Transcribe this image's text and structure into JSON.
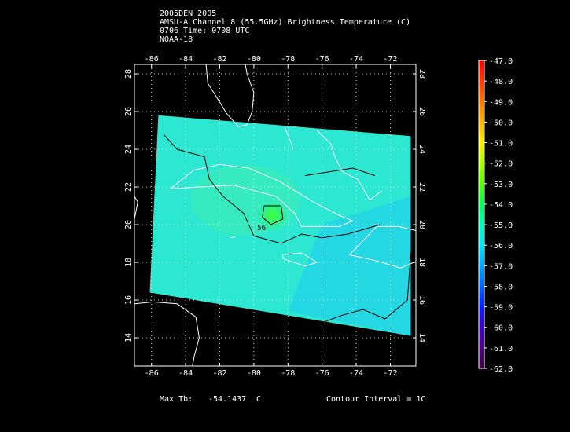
{
  "header": {
    "line1": "2005DEN 2005",
    "line2": "AMSU-A Channel 8 (55.5GHz) Brightness Temperature (C)",
    "line3": "0706 Time: 0708 UTC",
    "line4": "NOAA-18"
  },
  "footer": {
    "max_tb_label": "Max Tb:",
    "max_tb_value": "-54.1437",
    "max_tb_unit": "C",
    "contour_interval": "Contour Interval = 1C"
  },
  "chart_data": {
    "type": "heatmap",
    "x_axis": {
      "range": [
        -87,
        -70.5
      ],
      "ticks": [
        -86,
        -84,
        -82,
        -80,
        -78,
        -76,
        -74,
        -72
      ]
    },
    "y_axis": {
      "range": [
        12.5,
        28.5
      ],
      "ticks": [
        14,
        16,
        18,
        20,
        22,
        24,
        26,
        28
      ]
    },
    "grid": true,
    "swath_corners": [
      [
        -85.6,
        25.8
      ],
      [
        -70.8,
        24.7
      ],
      [
        -70.8,
        14.1
      ],
      [
        -86.1,
        16.4
      ]
    ],
    "warm_core_center": [
      -78.9,
      20.5
    ],
    "contour_label": "56",
    "colorbar": {
      "ticks": [
        "-47.0",
        "-48.0",
        "-49.0",
        "-50.0",
        "-51.0",
        "-52.0",
        "-53.0",
        "-54.0",
        "-55.0",
        "-56.0",
        "-57.0",
        "-58.0",
        "-59.0",
        "-60.0",
        "-61.0",
        "-62.0"
      ],
      "colors": [
        "#ff0000",
        "#ff3b00",
        "#ff7a00",
        "#ffb400",
        "#ffee00",
        "#aaff00",
        "#55ff00",
        "#00ff55",
        "#00ffbb",
        "#00e6ff",
        "#00a8ff",
        "#0064ff",
        "#0a1eff",
        "#3c00c8",
        "#50008c",
        "#3c003c"
      ]
    },
    "max_tb": -54.1437,
    "contour_interval": 1
  },
  "colors": {
    "land": "#ffffff",
    "background": "#000000",
    "contour": "#000000"
  }
}
